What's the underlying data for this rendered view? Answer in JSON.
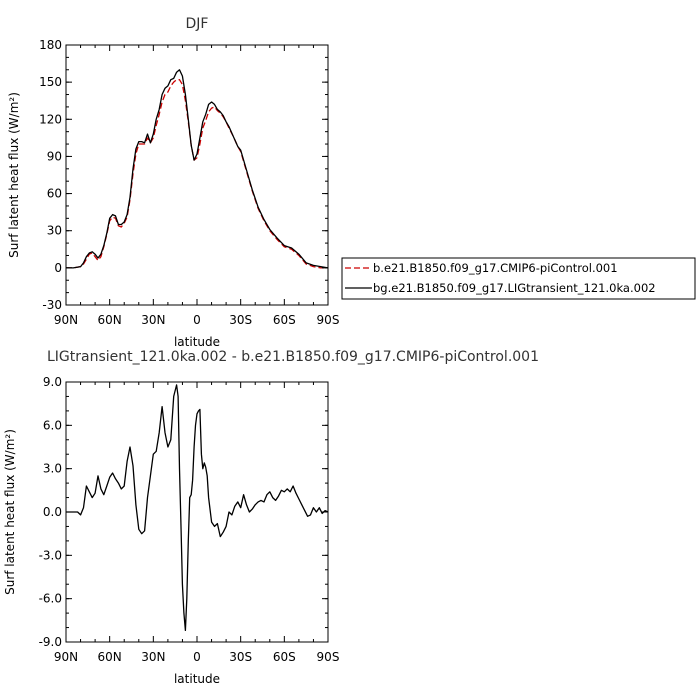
{
  "top_panel": {
    "title": "DJF",
    "xlabel": "latitude",
    "ylabel": "Surf latent heat flux (W/m²)"
  },
  "bottom_panel": {
    "title": "LIGtransient_121.0ka.002 - b.e21.B1850.f09_g17.CMIP6-piControl.001",
    "xlabel": "latitude",
    "ylabel": "Surf latent heat flux (W/m²)"
  },
  "legend": {
    "entries": [
      {
        "label": "b.e21.B1850.f09_g17.CMIP6-piControl.001",
        "color": "#cc0000",
        "dash": "dashed"
      },
      {
        "label": "bg.e21.B1850.f09_g17.LIGtransient_121.0ka.002",
        "color": "#000000",
        "dash": "solid"
      }
    ]
  },
  "chart_data": [
    {
      "type": "line",
      "title": "DJF",
      "xlabel": "latitude",
      "ylabel": "Surf latent heat flux (W/m²)",
      "xlim": [
        90,
        -90
      ],
      "ylim": [
        -30,
        180
      ],
      "xticks": [
        90,
        60,
        30,
        0,
        -30,
        -60,
        -90
      ],
      "xtick_labels": [
        "90N",
        "60N",
        "30N",
        "0",
        "30S",
        "60S",
        "90S"
      ],
      "yticks": [
        -30,
        0,
        30,
        60,
        90,
        120,
        150,
        180
      ],
      "ytick_labels": [
        "-30",
        "0",
        "30",
        "60",
        "90",
        "120",
        "150",
        "180"
      ],
      "x": [
        90,
        85,
        80,
        78,
        76,
        74,
        72,
        70,
        68,
        66,
        64,
        62,
        60,
        58,
        56,
        54,
        52,
        50,
        48,
        46,
        44,
        42,
        40,
        38,
        36,
        34,
        32,
        30,
        28,
        26,
        24,
        22,
        20,
        18,
        16,
        14,
        12,
        10,
        8,
        6,
        4,
        2,
        0,
        -2,
        -4,
        -6,
        -8,
        -10,
        -12,
        -14,
        -16,
        -18,
        -20,
        -22,
        -25,
        -28,
        -30,
        -34,
        -38,
        -42,
        -46,
        -50,
        -55,
        -60,
        -65,
        -70,
        -75,
        -80,
        -85,
        -90
      ],
      "series": [
        {
          "name": "b.e21.B1850.f09_g17.CMIP6-piControl.001",
          "color": "#cc0000",
          "dash": "dashed",
          "values": [
            0,
            0,
            1,
            3,
            7,
            11,
            12,
            9,
            6,
            9,
            17,
            27,
            38,
            41,
            40,
            34,
            33,
            36,
            41,
            55,
            76,
            92,
            100,
            100,
            100,
            105,
            101,
            105,
            115,
            124,
            134,
            140,
            142,
            147,
            150,
            152,
            152,
            148,
            135,
            118,
            99,
            87,
            89,
            100,
            113,
            119,
            126,
            129,
            130,
            127,
            125,
            122,
            118,
            113,
            106,
            98,
            94,
            78,
            62,
            48,
            38,
            30,
            23,
            17,
            15,
            10,
            3,
            1,
            0,
            0
          ]
        },
        {
          "name": "bg.e21.B1850.f09_g17.LIGtransient_121.0ka.002",
          "color": "#000000",
          "dash": "solid",
          "values": [
            0,
            0,
            1,
            4,
            9,
            12,
            13,
            11,
            8,
            11,
            18,
            28,
            40,
            43,
            42,
            35,
            35,
            37,
            43,
            57,
            80,
            96,
            102,
            102,
            101,
            108,
            101,
            108,
            120,
            128,
            140,
            145,
            147,
            152,
            153,
            158,
            160,
            155,
            140,
            120,
            99,
            87,
            92,
            105,
            118,
            124,
            132,
            134,
            132,
            128,
            126,
            123,
            118,
            114,
            106,
            98,
            95,
            79,
            63,
            49,
            39,
            31,
            24,
            18,
            16,
            11,
            4,
            2,
            1,
            0
          ]
        }
      ]
    },
    {
      "type": "line",
      "title": "LIGtransient_121.0ka.002 - b.e21.B1850.f09_g17.CMIP6-piControl.001",
      "xlabel": "latitude",
      "ylabel": "Surf latent heat flux (W/m²)",
      "xlim": [
        90,
        -90
      ],
      "ylim": [
        -9,
        9
      ],
      "xticks": [
        90,
        60,
        30,
        0,
        -30,
        -60,
        -90
      ],
      "xtick_labels": [
        "90N",
        "60N",
        "30N",
        "0",
        "30S",
        "60S",
        "90S"
      ],
      "yticks": [
        -9,
        -6,
        -3,
        0,
        3,
        6,
        9
      ],
      "ytick_labels": [
        "-9.0",
        "-6.0",
        "-3.0",
        "0.0",
        "3.0",
        "6.0",
        "9.0"
      ],
      "x": [
        90,
        85,
        82,
        80,
        78,
        76,
        74,
        72,
        70,
        68,
        66,
        64,
        62,
        60,
        58,
        56,
        54,
        52,
        50,
        48,
        46,
        44,
        42,
        40,
        38,
        36,
        34,
        32,
        30,
        28,
        26,
        24,
        22,
        20,
        18,
        16,
        14,
        13,
        12,
        11,
        10,
        9,
        8,
        7,
        6,
        5,
        4,
        3,
        2,
        1,
        0,
        -1,
        -2,
        -3,
        -4,
        -5,
        -6,
        -7,
        -8,
        -10,
        -12,
        -14,
        -16,
        -18,
        -20,
        -22,
        -24,
        -26,
        -28,
        -30,
        -32,
        -34,
        -36,
        -38,
        -40,
        -42,
        -44,
        -46,
        -48,
        -50,
        -52,
        -54,
        -56,
        -58,
        -60,
        -62,
        -64,
        -66,
        -68,
        -70,
        -72,
        -74,
        -76,
        -78,
        -80,
        -82,
        -84,
        -86,
        -88,
        -90
      ],
      "series": [
        {
          "name": "",
          "color": "#000000",
          "dash": "solid",
          "values": [
            0,
            0,
            0,
            -0.2,
            0.3,
            1.8,
            1.4,
            1.0,
            1.3,
            2.5,
            1.6,
            1.2,
            1.8,
            2.4,
            2.7,
            2.3,
            2.0,
            1.6,
            1.8,
            3.5,
            4.5,
            3.2,
            0.5,
            -1.2,
            -1.5,
            -1.3,
            1.0,
            2.5,
            4.0,
            4.2,
            5.5,
            7.3,
            5.5,
            4.5,
            5.0,
            8.0,
            8.8,
            8.0,
            3.0,
            -1.0,
            -5.0,
            -7.0,
            -8.2,
            -6.0,
            -2.0,
            1.0,
            1.2,
            2.2,
            4.5,
            6.0,
            6.8,
            7.0,
            7.1,
            4.0,
            3.0,
            3.4,
            3.1,
            2.5,
            1.0,
            -0.7,
            -1.0,
            -0.8,
            -1.7,
            -1.4,
            -1.0,
            0.0,
            -0.2,
            0.4,
            0.7,
            0.3,
            1.2,
            0.5,
            0.0,
            0.2,
            0.5,
            0.7,
            0.8,
            0.7,
            1.2,
            1.4,
            1.0,
            0.8,
            1.1,
            1.5,
            1.4,
            1.6,
            1.4,
            1.8,
            1.3,
            0.9,
            0.5,
            0.1,
            -0.3,
            -0.2,
            0.3,
            0.0,
            0.3,
            -0.1,
            0.1,
            0.0
          ]
        }
      ]
    }
  ]
}
